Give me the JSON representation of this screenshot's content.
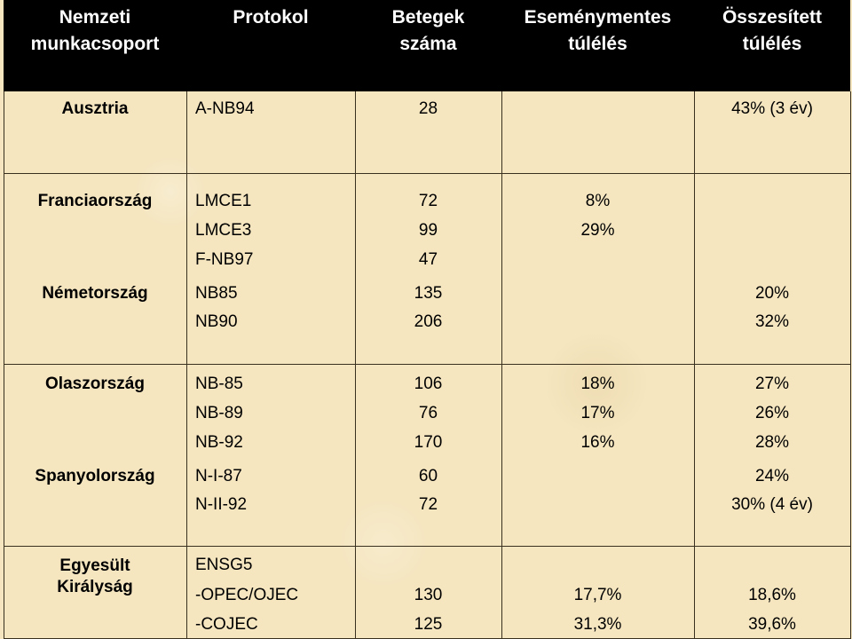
{
  "headers": [
    "Nemzeti\nmunkacsoport",
    "Protokol",
    "Betegek\nszáma",
    "Eseménymentes\ntúlélés",
    "Összesített\ntúlélés"
  ],
  "rows": [
    {
      "country": "Ausztria",
      "protocol": "A-NB94",
      "patients": "28",
      "efs": "",
      "os": "43% (3 év)"
    },
    {
      "country": "Franciaország",
      "protocol": "LMCE1",
      "patients": "72",
      "efs": "8%",
      "os": ""
    },
    {
      "country": "",
      "protocol": "LMCE3",
      "patients": "99",
      "efs": "29%",
      "os": ""
    },
    {
      "country": "",
      "protocol": "F-NB97",
      "patients": "47",
      "efs": "",
      "os": ""
    },
    {
      "country": "Németország",
      "protocol": "NB85",
      "patients": "135",
      "efs": "",
      "os": "20%"
    },
    {
      "country": "",
      "protocol": "NB90",
      "patients": "206",
      "efs": "",
      "os": "32%"
    },
    {
      "country": "Olaszország",
      "protocol": "NB-85",
      "patients": "106",
      "efs": "18%",
      "os": "27%"
    },
    {
      "country": "",
      "protocol": "NB-89",
      "patients": "76",
      "efs": "17%",
      "os": "26%"
    },
    {
      "country": "",
      "protocol": "NB-92",
      "patients": "170",
      "efs": "16%",
      "os": "28%"
    },
    {
      "country": "Spanyolország",
      "protocol": "N-I-87",
      "patients": "60",
      "efs": "",
      "os": "24%"
    },
    {
      "country": "",
      "protocol": "N-II-92",
      "patients": "72",
      "efs": "",
      "os": "30% (4 év)"
    },
    {
      "country": "Egyesült\nKirályság",
      "protocol": "ENSG5",
      "patients": "",
      "efs": "",
      "os": ""
    },
    {
      "country": "",
      "protocol": "-OPEC/OJEC",
      "patients": "130",
      "efs": "17,7%",
      "os": "18,6%"
    },
    {
      "country": "",
      "protocol": "-COJEC",
      "patients": "125",
      "efs": "31,3%",
      "os": "39,6%"
    }
  ]
}
